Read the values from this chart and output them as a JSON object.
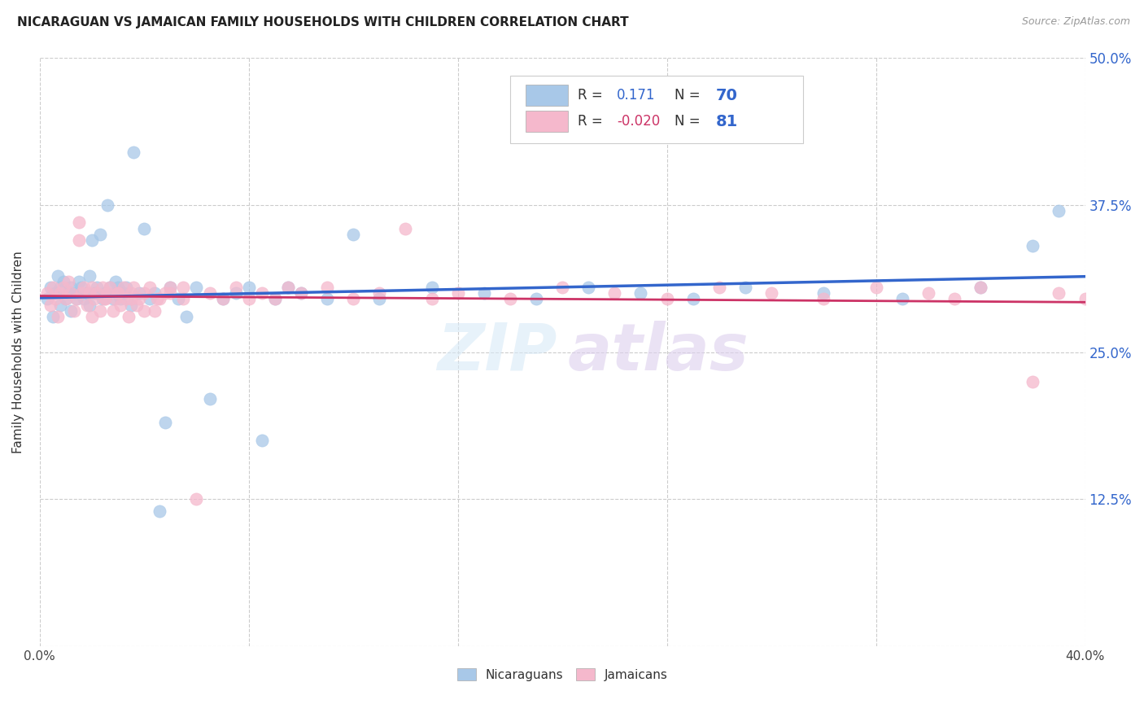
{
  "title": "NICARAGUAN VS JAMAICAN FAMILY HOUSEHOLDS WITH CHILDREN CORRELATION CHART",
  "source": "Source: ZipAtlas.com",
  "ylabel": "Family Households with Children",
  "blue_color": "#a8c8e8",
  "pink_color": "#f5b8cc",
  "blue_line_color": "#3366cc",
  "pink_line_color": "#cc3366",
  "legend_blue_R": "0.171",
  "legend_blue_N": "70",
  "legend_pink_R": "-0.020",
  "legend_pink_N": "81",
  "background_color": "#ffffff",
  "grid_color": "#cccccc",
  "ytick_vals": [
    0.0,
    0.125,
    0.25,
    0.375,
    0.5
  ],
  "ytick_labels": [
    "",
    "12.5%",
    "25.0%",
    "37.5%",
    "50.0%"
  ],
  "xtick_vals": [
    0.0,
    0.08,
    0.16,
    0.24,
    0.32,
    0.4
  ],
  "xlim": [
    0.0,
    0.4
  ],
  "ylim": [
    0.0,
    0.5
  ],
  "blue_x": [
    0.003,
    0.004,
    0.005,
    0.006,
    0.007,
    0.008,
    0.008,
    0.009,
    0.01,
    0.011,
    0.012,
    0.012,
    0.013,
    0.014,
    0.015,
    0.015,
    0.016,
    0.017,
    0.018,
    0.019,
    0.019,
    0.02,
    0.021,
    0.022,
    0.023,
    0.024,
    0.025,
    0.026,
    0.027,
    0.028,
    0.029,
    0.03,
    0.031,
    0.032,
    0.033,
    0.035,
    0.036,
    0.038,
    0.04,
    0.042,
    0.044,
    0.046,
    0.048,
    0.05,
    0.053,
    0.056,
    0.06,
    0.065,
    0.07,
    0.075,
    0.08,
    0.085,
    0.09,
    0.095,
    0.1,
    0.11,
    0.12,
    0.13,
    0.15,
    0.17,
    0.19,
    0.21,
    0.23,
    0.25,
    0.27,
    0.3,
    0.33,
    0.36,
    0.38,
    0.39
  ],
  "blue_y": [
    0.295,
    0.305,
    0.28,
    0.3,
    0.315,
    0.29,
    0.305,
    0.31,
    0.295,
    0.3,
    0.285,
    0.305,
    0.3,
    0.295,
    0.31,
    0.3,
    0.305,
    0.295,
    0.3,
    0.315,
    0.29,
    0.345,
    0.3,
    0.305,
    0.35,
    0.295,
    0.3,
    0.375,
    0.305,
    0.295,
    0.31,
    0.305,
    0.295,
    0.3,
    0.305,
    0.29,
    0.42,
    0.3,
    0.355,
    0.295,
    0.3,
    0.115,
    0.19,
    0.305,
    0.295,
    0.28,
    0.305,
    0.21,
    0.295,
    0.3,
    0.305,
    0.175,
    0.295,
    0.305,
    0.3,
    0.295,
    0.35,
    0.295,
    0.305,
    0.3,
    0.295,
    0.305,
    0.3,
    0.295,
    0.305,
    0.3,
    0.295,
    0.305,
    0.34,
    0.37
  ],
  "pink_x": [
    0.003,
    0.004,
    0.005,
    0.006,
    0.007,
    0.008,
    0.009,
    0.01,
    0.011,
    0.012,
    0.013,
    0.014,
    0.015,
    0.016,
    0.017,
    0.018,
    0.019,
    0.02,
    0.021,
    0.022,
    0.023,
    0.024,
    0.025,
    0.026,
    0.027,
    0.028,
    0.029,
    0.03,
    0.031,
    0.032,
    0.033,
    0.034,
    0.035,
    0.036,
    0.037,
    0.038,
    0.04,
    0.042,
    0.044,
    0.046,
    0.048,
    0.05,
    0.055,
    0.06,
    0.065,
    0.07,
    0.075,
    0.08,
    0.085,
    0.09,
    0.095,
    0.1,
    0.11,
    0.12,
    0.13,
    0.14,
    0.15,
    0.16,
    0.18,
    0.2,
    0.22,
    0.24,
    0.26,
    0.28,
    0.3,
    0.32,
    0.34,
    0.35,
    0.36,
    0.38,
    0.39,
    0.4,
    0.015,
    0.02,
    0.025,
    0.03,
    0.035,
    0.04,
    0.045,
    0.05,
    0.055
  ],
  "pink_y": [
    0.3,
    0.29,
    0.305,
    0.295,
    0.28,
    0.3,
    0.305,
    0.295,
    0.31,
    0.3,
    0.285,
    0.295,
    0.36,
    0.3,
    0.305,
    0.29,
    0.3,
    0.305,
    0.295,
    0.3,
    0.285,
    0.305,
    0.295,
    0.3,
    0.305,
    0.285,
    0.295,
    0.3,
    0.29,
    0.305,
    0.295,
    0.28,
    0.3,
    0.305,
    0.29,
    0.295,
    0.3,
    0.305,
    0.285,
    0.295,
    0.3,
    0.305,
    0.295,
    0.125,
    0.3,
    0.295,
    0.305,
    0.295,
    0.3,
    0.295,
    0.305,
    0.3,
    0.305,
    0.295,
    0.3,
    0.355,
    0.295,
    0.3,
    0.295,
    0.305,
    0.3,
    0.295,
    0.305,
    0.3,
    0.295,
    0.305,
    0.3,
    0.295,
    0.305,
    0.225,
    0.3,
    0.295,
    0.345,
    0.28,
    0.295,
    0.3,
    0.295,
    0.285,
    0.295,
    0.3,
    0.305
  ]
}
